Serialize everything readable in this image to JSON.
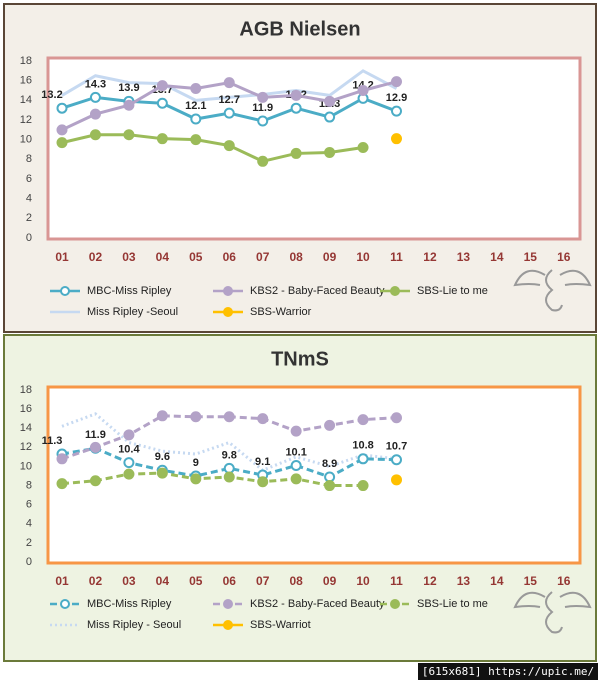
{
  "chart_data": [
    {
      "type": "line",
      "title": "AGB Nielsen",
      "categories": [
        "01",
        "02",
        "03",
        "04",
        "05",
        "06",
        "07",
        "08",
        "09",
        "10",
        "11",
        "12",
        "13",
        "14",
        "15",
        "16"
      ],
      "ylim": [
        0,
        18
      ],
      "yticks": [
        0,
        2,
        4,
        6,
        8,
        10,
        12,
        14,
        16,
        18
      ],
      "frame_color": "#d99694",
      "series": [
        {
          "name": "MBC-Miss Ripley",
          "color": "#4bacc6",
          "marker": "hollow",
          "dash": "solid",
          "show_labels": true,
          "values": [
            13.2,
            14.3,
            13.9,
            13.7,
            12.1,
            12.7,
            11.9,
            13.2,
            12.3,
            14.2,
            12.9,
            null,
            null,
            null,
            null,
            null
          ]
        },
        {
          "name": "KBS2 - Baby-Faced Beauty",
          "color": "#b3a2c7",
          "marker": "circle",
          "dash": "solid",
          "values": [
            11,
            12.6,
            13.5,
            15.5,
            15.2,
            15.8,
            14.3,
            14.5,
            13.9,
            15,
            15.9,
            null,
            null,
            null,
            null,
            null
          ]
        },
        {
          "name": "SBS-Lie to me",
          "color": "#9bbb59",
          "marker": "circle",
          "dash": "solid",
          "values": [
            9.7,
            10.5,
            10.5,
            10.1,
            10,
            9.4,
            7.8,
            8.6,
            8.7,
            9.2,
            null,
            null,
            null,
            null,
            null,
            null
          ]
        },
        {
          "name": "Miss Ripley -Seoul",
          "color": "#c6d9f1",
          "marker": "none",
          "dash": "solid",
          "values": [
            14.5,
            16.5,
            15.8,
            15.7,
            14,
            14.3,
            14.6,
            15,
            14.5,
            17,
            15.2,
            null,
            null,
            null,
            null,
            null
          ]
        },
        {
          "name": "SBS-Warrior",
          "color": "#ffc000",
          "marker": "circle",
          "dash": "solid",
          "values": [
            null,
            null,
            null,
            null,
            null,
            null,
            null,
            null,
            null,
            null,
            10.1,
            null,
            null,
            null,
            null,
            null
          ]
        }
      ]
    },
    {
      "type": "line",
      "title": "TNmS",
      "categories": [
        "01",
        "02",
        "03",
        "04",
        "05",
        "06",
        "07",
        "08",
        "09",
        "10",
        "11",
        "12",
        "13",
        "14",
        "15",
        "16"
      ],
      "ylim": [
        0,
        18
      ],
      "yticks": [
        0,
        2,
        4,
        6,
        8,
        10,
        12,
        14,
        16,
        18
      ],
      "frame_color": "#f79646",
      "series": [
        {
          "name": "MBC-Miss Ripley",
          "color": "#4bacc6",
          "marker": "hollow",
          "dash": "dashed",
          "show_labels": true,
          "values": [
            11.3,
            11.9,
            10.4,
            9.6,
            9,
            9.8,
            9.1,
            10.1,
            8.9,
            10.8,
            10.7,
            null,
            null,
            null,
            null,
            null
          ]
        },
        {
          "name": "KBS2 - Baby-Faced Beauty",
          "color": "#b3a2c7",
          "marker": "circle",
          "dash": "dashed",
          "values": [
            10.8,
            12,
            13.3,
            15.3,
            15.2,
            15.2,
            15,
            13.7,
            14.3,
            14.9,
            15.1,
            null,
            null,
            null,
            null,
            null
          ]
        },
        {
          "name": "SBS-Lie to me",
          "color": "#9bbb59",
          "marker": "circle",
          "dash": "dashed",
          "values": [
            8.2,
            8.5,
            9.2,
            9.3,
            8.7,
            8.9,
            8.4,
            8.7,
            8,
            8,
            null,
            null,
            null,
            null,
            null,
            null
          ]
        },
        {
          "name": "Miss Ripley - Seoul",
          "color": "#c6d9f1",
          "marker": "none",
          "dash": "dotted",
          "values": [
            14.2,
            15.5,
            12.5,
            11.6,
            11.3,
            12.5,
            9.6,
            11,
            10,
            11.2,
            10.8,
            null,
            null,
            null,
            null,
            null
          ]
        },
        {
          "name": "SBS-Warriot",
          "color": "#ffc000",
          "marker": "circle",
          "dash": "solid",
          "values": [
            null,
            null,
            null,
            null,
            null,
            null,
            null,
            null,
            null,
            null,
            8.6,
            null,
            null,
            null,
            null,
            null
          ]
        }
      ]
    }
  ],
  "footer": "[615x681] https://upic.me/"
}
